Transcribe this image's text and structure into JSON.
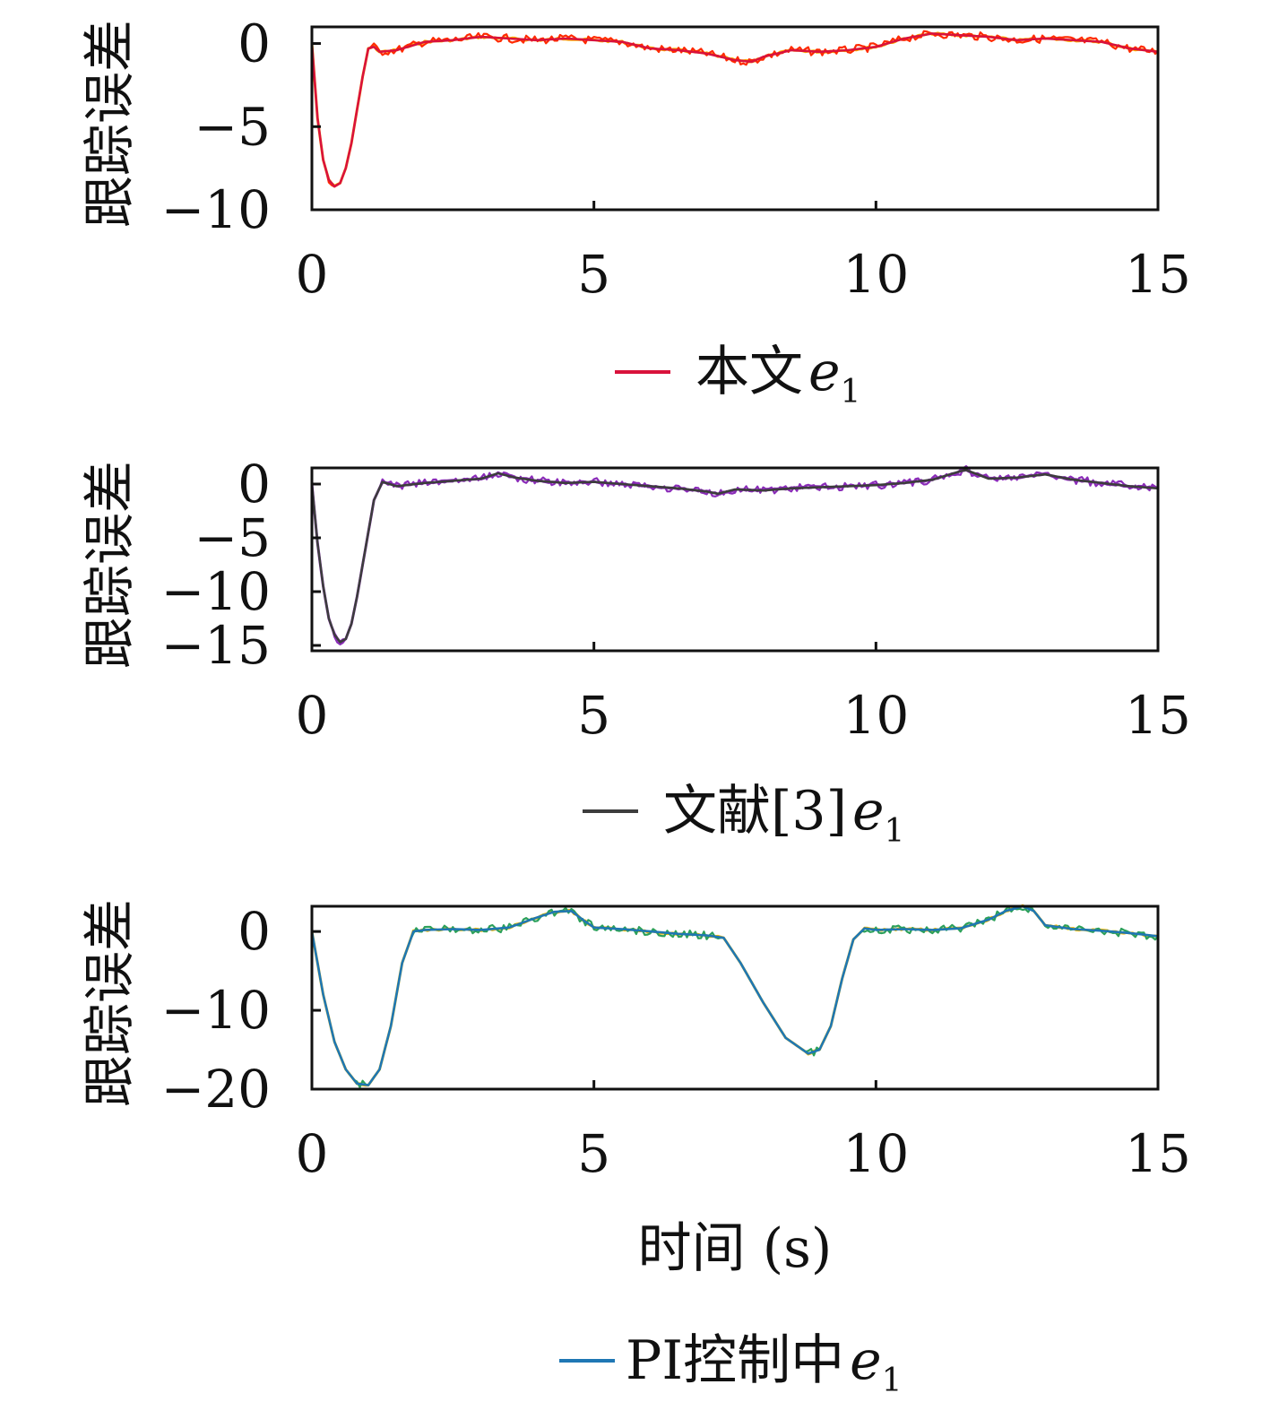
{
  "chart_data": [
    {
      "type": "line",
      "ylabel": "跟踪误差",
      "xlabel": "",
      "xlim": [
        0,
        15
      ],
      "ylim": [
        -10,
        1
      ],
      "x_ticks": [
        "0",
        "5",
        "10",
        "15"
      ],
      "y_ticks": [
        "0",
        "−5",
        "−10"
      ],
      "legend": {
        "label": "本文",
        "symbol": "e",
        "subscript": "1",
        "placement": "bottom-center"
      },
      "colors": {
        "main": "#d9123c",
        "noise": "#ff2a00",
        "accent": "#ffb300"
      },
      "series": [
        {
          "name": "本文e1",
          "x": [
            0,
            0.1,
            0.2,
            0.3,
            0.4,
            0.5,
            0.6,
            0.7,
            0.8,
            0.9,
            1.0,
            1.1,
            1.2,
            1.5,
            2.0,
            2.5,
            3.0,
            3.5,
            4.0,
            4.5,
            5.0,
            5.5,
            6.0,
            6.5,
            7.0,
            7.5,
            7.8,
            8.0,
            8.5,
            9.0,
            9.5,
            10.0,
            10.5,
            11.0,
            11.5,
            12.0,
            12.5,
            13.0,
            13.5,
            14.0,
            14.5,
            15.0
          ],
          "y": [
            0,
            -4.5,
            -7.0,
            -8.2,
            -8.6,
            -8.4,
            -7.5,
            -6.0,
            -4.0,
            -2.0,
            -0.3,
            -0.2,
            -0.5,
            -0.4,
            0.1,
            0.2,
            0.4,
            0.3,
            0.2,
            0.3,
            0.2,
            0.1,
            -0.3,
            -0.4,
            -0.6,
            -1.0,
            -1.1,
            -0.8,
            -0.4,
            -0.5,
            -0.4,
            -0.2,
            0.3,
            0.6,
            0.5,
            0.4,
            0.2,
            0.3,
            0.2,
            0.1,
            -0.3,
            -0.5
          ]
        }
      ]
    },
    {
      "type": "line",
      "ylabel": "跟踪误差",
      "xlabel": "",
      "xlim": [
        0,
        15
      ],
      "ylim": [
        -15.5,
        1.5
      ],
      "x_ticks": [
        "0",
        "5",
        "10",
        "15"
      ],
      "y_ticks": [
        "0",
        "−5",
        "−10",
        "−15"
      ],
      "legend": {
        "label": "文献[3]",
        "symbol": "e",
        "subscript": "1",
        "placement": "bottom-center"
      },
      "colors": {
        "main": "#3d3d3d",
        "noise": "#8a2bb8",
        "accent": "#8a2bb8"
      },
      "series": [
        {
          "name": "文献[3]e1",
          "x": [
            0,
            0.1,
            0.2,
            0.3,
            0.4,
            0.5,
            0.6,
            0.7,
            0.8,
            0.9,
            1.0,
            1.1,
            1.25,
            1.5,
            2.0,
            2.5,
            3.0,
            3.3,
            3.6,
            4.0,
            4.5,
            5.0,
            5.5,
            6.0,
            6.5,
            7.0,
            7.2,
            7.5,
            8.0,
            8.5,
            9.0,
            9.5,
            10.0,
            10.5,
            11.0,
            11.5,
            11.6,
            12.0,
            12.5,
            13.0,
            13.5,
            14.0,
            14.5,
            15.0
          ],
          "y": [
            0,
            -5.5,
            -9.5,
            -12.5,
            -14.0,
            -14.7,
            -14.4,
            -13.0,
            -10.5,
            -7.5,
            -4.5,
            -1.5,
            0.2,
            -0.2,
            0.1,
            0.3,
            0.5,
            1.0,
            0.6,
            0.3,
            0.1,
            0.2,
            0,
            -0.2,
            -0.4,
            -0.7,
            -0.9,
            -0.5,
            -0.6,
            -0.4,
            -0.3,
            -0.2,
            -0.1,
            0.1,
            0.4,
            1.2,
            1.3,
            0.5,
            0.6,
            0.9,
            0.4,
            0.1,
            -0.2,
            -0.4
          ]
        }
      ]
    },
    {
      "type": "line",
      "ylabel": "跟踪误差",
      "xlabel": "时间 (s)",
      "xlim": [
        0,
        15
      ],
      "ylim": [
        -20,
        3.2
      ],
      "x_ticks": [
        "0",
        "5",
        "10",
        "15"
      ],
      "y_ticks": [
        "0",
        "−10",
        "−20"
      ],
      "legend": {
        "label": "PI控制中",
        "symbol": "e",
        "subscript": "1",
        "placement": "bottom-center"
      },
      "colors": {
        "main": "#1f77b4",
        "noise": "#2ca05a",
        "accent": "#f5b800"
      },
      "series": [
        {
          "name": "PI控制中e1",
          "x": [
            0,
            0.2,
            0.4,
            0.6,
            0.8,
            1.0,
            1.2,
            1.4,
            1.6,
            1.8,
            2.0,
            2.5,
            3.0,
            3.5,
            4.0,
            4.3,
            4.6,
            4.8,
            5.0,
            5.5,
            6.0,
            6.5,
            7.0,
            7.3,
            7.6,
            8.0,
            8.4,
            8.8,
            9.0,
            9.2,
            9.4,
            9.6,
            9.8,
            10.0,
            10.5,
            11.0,
            11.5,
            12.0,
            12.3,
            12.6,
            12.8,
            13.0,
            13.5,
            14.0,
            14.5,
            15.0
          ],
          "y": [
            0,
            -8,
            -14,
            -17.5,
            -19.3,
            -19.5,
            -17.5,
            -12,
            -4,
            0,
            0.2,
            0.3,
            0.2,
            0.5,
            1.8,
            2.5,
            2.6,
            1.5,
            0.5,
            0.3,
            0,
            -0.3,
            -0.5,
            -0.8,
            -4.0,
            -9.0,
            -13.5,
            -15.5,
            -15.0,
            -12.0,
            -6.0,
            -1.0,
            0.4,
            0.2,
            0.3,
            0.2,
            0.4,
            1.5,
            2.6,
            3.2,
            2.6,
            0.8,
            0.3,
            0.1,
            -0.2,
            -0.6
          ]
        }
      ]
    }
  ]
}
